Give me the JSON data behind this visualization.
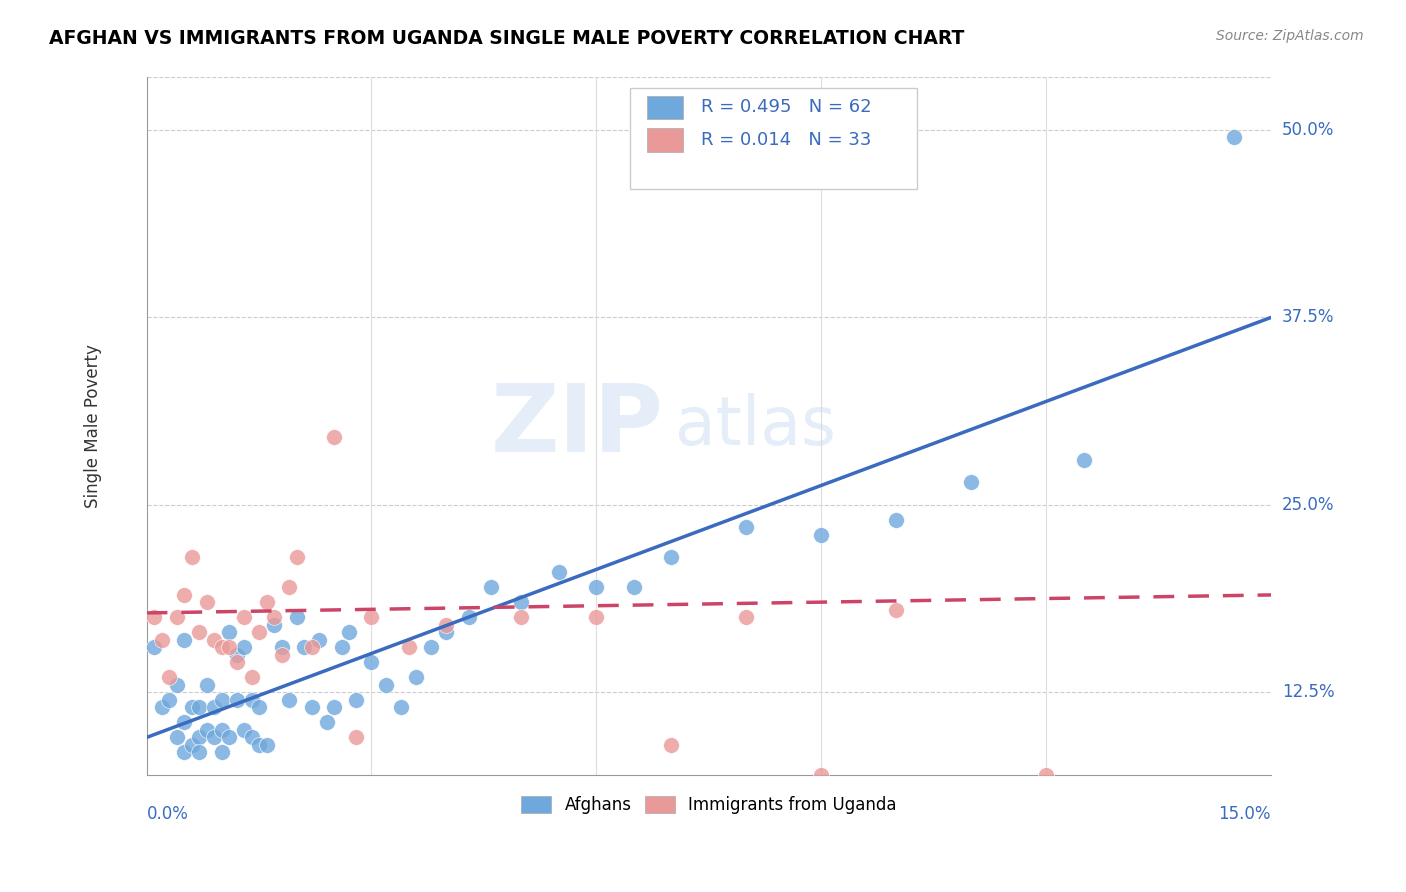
{
  "title": "AFGHAN VS IMMIGRANTS FROM UGANDA SINGLE MALE POVERTY CORRELATION CHART",
  "source": "Source: ZipAtlas.com",
  "ylabel": "Single Male Poverty",
  "yticks": [
    "12.5%",
    "25.0%",
    "37.5%",
    "50.0%"
  ],
  "ytick_vals": [
    0.125,
    0.25,
    0.375,
    0.5
  ],
  "xlim": [
    0.0,
    0.15
  ],
  "ylim": [
    0.07,
    0.535
  ],
  "blue_R": 0.495,
  "blue_N": 62,
  "pink_R": 0.014,
  "pink_N": 33,
  "blue_color": "#6fa8dc",
  "pink_color": "#ea9999",
  "blue_line_color": "#3a6bbf",
  "pink_line_color": "#cc4466",
  "watermark_zip": "ZIP",
  "watermark_atlas": "atlas",
  "legend_label_blue": "Afghans",
  "legend_label_pink": "Immigrants from Uganda",
  "blue_scatter_x": [
    0.001,
    0.002,
    0.003,
    0.004,
    0.004,
    0.005,
    0.005,
    0.005,
    0.006,
    0.006,
    0.007,
    0.007,
    0.007,
    0.008,
    0.008,
    0.009,
    0.009,
    0.01,
    0.01,
    0.01,
    0.011,
    0.011,
    0.012,
    0.012,
    0.013,
    0.013,
    0.014,
    0.014,
    0.015,
    0.015,
    0.016,
    0.017,
    0.018,
    0.019,
    0.02,
    0.021,
    0.022,
    0.023,
    0.024,
    0.025,
    0.026,
    0.027,
    0.028,
    0.03,
    0.032,
    0.034,
    0.036,
    0.038,
    0.04,
    0.043,
    0.046,
    0.05,
    0.055,
    0.06,
    0.065,
    0.07,
    0.08,
    0.09,
    0.1,
    0.11,
    0.125,
    0.145
  ],
  "blue_scatter_y": [
    0.155,
    0.115,
    0.12,
    0.095,
    0.13,
    0.085,
    0.105,
    0.16,
    0.09,
    0.115,
    0.095,
    0.115,
    0.085,
    0.1,
    0.13,
    0.095,
    0.115,
    0.085,
    0.1,
    0.12,
    0.095,
    0.165,
    0.12,
    0.15,
    0.1,
    0.155,
    0.095,
    0.12,
    0.09,
    0.115,
    0.09,
    0.17,
    0.155,
    0.12,
    0.175,
    0.155,
    0.115,
    0.16,
    0.105,
    0.115,
    0.155,
    0.165,
    0.12,
    0.145,
    0.13,
    0.115,
    0.135,
    0.155,
    0.165,
    0.175,
    0.195,
    0.185,
    0.205,
    0.195,
    0.195,
    0.215,
    0.235,
    0.23,
    0.24,
    0.265,
    0.28,
    0.495
  ],
  "pink_scatter_x": [
    0.001,
    0.002,
    0.003,
    0.004,
    0.005,
    0.006,
    0.007,
    0.008,
    0.009,
    0.01,
    0.011,
    0.012,
    0.013,
    0.014,
    0.015,
    0.016,
    0.017,
    0.018,
    0.019,
    0.02,
    0.022,
    0.025,
    0.028,
    0.03,
    0.035,
    0.04,
    0.05,
    0.06,
    0.07,
    0.08,
    0.09,
    0.1,
    0.12
  ],
  "pink_scatter_y": [
    0.175,
    0.16,
    0.135,
    0.175,
    0.19,
    0.215,
    0.165,
    0.185,
    0.16,
    0.155,
    0.155,
    0.145,
    0.175,
    0.135,
    0.165,
    0.185,
    0.175,
    0.15,
    0.195,
    0.215,
    0.155,
    0.295,
    0.095,
    0.175,
    0.155,
    0.17,
    0.175,
    0.175,
    0.09,
    0.175,
    0.07,
    0.18,
    0.07
  ],
  "blue_line_x": [
    0.0,
    0.15
  ],
  "blue_line_y": [
    0.095,
    0.375
  ],
  "pink_line_x": [
    0.0,
    0.15
  ],
  "pink_line_y": [
    0.178,
    0.19
  ]
}
